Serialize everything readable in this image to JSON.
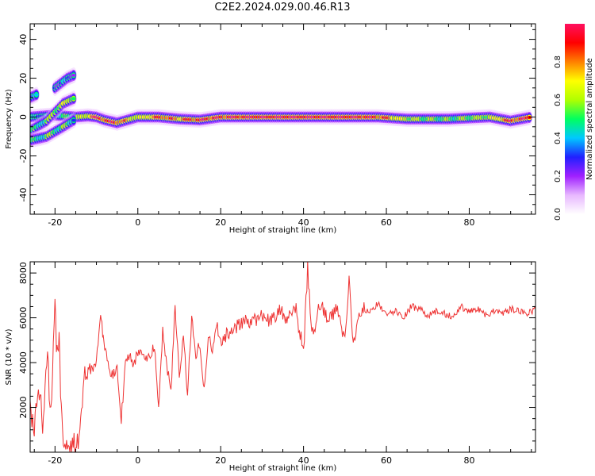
{
  "title": "C2E2.2024.029.00.46.R13",
  "colors": {
    "snr_line": "#ee3333",
    "colormap": [
      "#ffffff",
      "#e8b8ff",
      "#a020ff",
      "#2020ff",
      "#00c8ff",
      "#00ff60",
      "#b0ff00",
      "#ffff00",
      "#ff8000",
      "#ff0000",
      "#ff1060"
    ]
  },
  "chart_data": [
    {
      "type": "heatmap",
      "xlabel": "Height of straight line (km)",
      "ylabel": "Frequency (Hz)",
      "xlim": [
        -26,
        96
      ],
      "ylim": [
        -50,
        48
      ],
      "xticks": [
        -20,
        0,
        20,
        40,
        60,
        80
      ],
      "yticks": [
        -40,
        -20,
        0,
        20,
        40
      ],
      "colorbar": {
        "label": "Normalized spectral amplitude",
        "range": [
          0.0,
          1.0
        ],
        "ticks": [
          0.0,
          0.2,
          0.4,
          0.6,
          0.8
        ]
      },
      "main_track": {
        "frequency_hz": 0,
        "points": [
          [
            -26,
            0,
            0.3
          ],
          [
            -20,
            1,
            0.4
          ],
          [
            -15,
            0,
            0.5
          ],
          [
            -12,
            0.5,
            0.7
          ],
          [
            -10,
            0,
            0.95
          ],
          [
            -8,
            -1.5,
            0.9
          ],
          [
            -5,
            -3,
            0.9
          ],
          [
            0,
            0,
            0.6
          ],
          [
            5,
            0,
            0.85
          ],
          [
            10,
            -1,
            0.8
          ],
          [
            15,
            -1.5,
            0.9
          ],
          [
            20,
            0,
            0.9
          ],
          [
            30,
            0,
            0.95
          ],
          [
            40,
            0,
            0.95
          ],
          [
            50,
            0,
            0.95
          ],
          [
            58,
            0,
            0.9
          ],
          [
            65,
            -1,
            0.6
          ],
          [
            75,
            -1,
            0.5
          ],
          [
            85,
            0,
            0.6
          ],
          [
            90,
            -2,
            0.9
          ],
          [
            95,
            0,
            0.9
          ]
        ]
      },
      "branches": [
        {
          "name": "upper",
          "points": [
            [
              -26,
              -7,
              0.4
            ],
            [
              -22,
              -2,
              0.5
            ],
            [
              -18,
              7,
              0.6
            ],
            [
              -15,
              10,
              0.6
            ]
          ]
        },
        {
          "name": "upper-faint",
          "points": [
            [
              -20,
              15,
              0.3
            ],
            [
              -17,
              20,
              0.3
            ],
            [
              -15,
              22,
              0.25
            ]
          ]
        },
        {
          "name": "lower",
          "points": [
            [
              -26,
              -12,
              0.4
            ],
            [
              -22,
              -10,
              0.5
            ],
            [
              -18,
              -5,
              0.5
            ],
            [
              -15,
              -1,
              0.4
            ]
          ]
        },
        {
          "name": "left-patch",
          "points": [
            [
              -26,
              10,
              0.3
            ],
            [
              -24,
              12,
              0.3
            ]
          ]
        }
      ]
    },
    {
      "type": "line",
      "xlabel": "Height of straight line (km)",
      "ylabel": "SNR (10 * v/v)",
      "xlim": [
        -26,
        96
      ],
      "ylim": [
        0,
        8500
      ],
      "xticks": [
        -20,
        0,
        20,
        40,
        60,
        80
      ],
      "yticks": [
        2000,
        4000,
        6000,
        8000
      ],
      "series": [
        {
          "x": [
            -26,
            -25,
            -24,
            -23,
            -22,
            -21,
            -20,
            -19.5,
            -19,
            -18.5,
            -18,
            -17,
            -16,
            -15,
            -14,
            -13,
            -12,
            -11,
            -10,
            -9,
            -8.5,
            -8,
            -7,
            -6,
            -5,
            -4,
            -3,
            -2,
            -1,
            0,
            1,
            2,
            3,
            4,
            5,
            6,
            7,
            8,
            9,
            10,
            11,
            12,
            13,
            14,
            15,
            16,
            17,
            18,
            19,
            20,
            22,
            24,
            26,
            28,
            30,
            32,
            34,
            36,
            38,
            40,
            41,
            42,
            44,
            46,
            48,
            50,
            51,
            52,
            54,
            56,
            58,
            60,
            62,
            64,
            66,
            68,
            70,
            72,
            74,
            76,
            78,
            80,
            82,
            84,
            86,
            88,
            90,
            92,
            94,
            96
          ],
          "y": [
            2300,
            700,
            3100,
            1200,
            4300,
            2100,
            6600,
            4100,
            5300,
            1800,
            900,
            500,
            250,
            300,
            1100,
            3400,
            3900,
            3600,
            4200,
            6000,
            5400,
            4600,
            3700,
            3400,
            3800,
            1500,
            3900,
            4300,
            3800,
            4500,
            4600,
            4100,
            4400,
            4700,
            2000,
            5400,
            3900,
            2700,
            6500,
            3300,
            5200,
            2600,
            6000,
            4400,
            4800,
            2700,
            5200,
            4600,
            5700,
            5000,
            5400,
            5600,
            5800,
            5900,
            6100,
            5800,
            6300,
            6000,
            6500,
            4500,
            8300,
            5100,
            6600,
            5800,
            6400,
            5000,
            7800,
            4900,
            6400,
            6200,
            6700,
            6100,
            6300,
            6000,
            6500,
            6400,
            6100,
            6300,
            6200,
            6000,
            6500,
            6300,
            6400,
            6100,
            6300,
            6200,
            6400,
            6300,
            6200,
            6400
          ]
        }
      ]
    }
  ]
}
